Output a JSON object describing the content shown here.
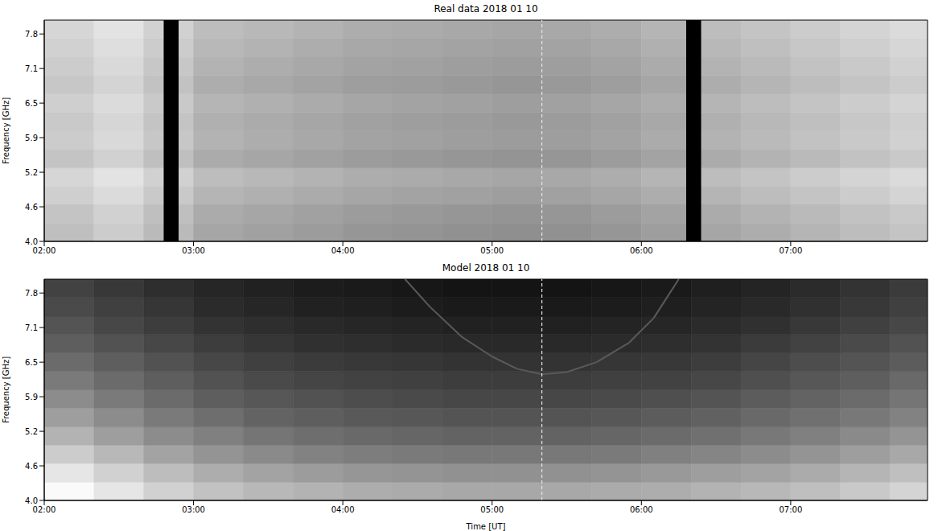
{
  "chart_data": [
    {
      "type": "heatmap",
      "title": "Real data 2018 01 10",
      "y_label": "Frequency [GHz]",
      "xlim": [
        120,
        475
      ],
      "xticks": [
        {
          "value": 120,
          "label": "02:00"
        },
        {
          "value": 180,
          "label": "03:00"
        },
        {
          "value": 240,
          "label": "04:00"
        },
        {
          "value": 300,
          "label": "05:00"
        },
        {
          "value": 360,
          "label": "06:00"
        },
        {
          "value": 420,
          "label": "07:00"
        }
      ],
      "ylim": [
        4.0,
        8.0
      ],
      "yticks": [
        {
          "value": 4.0,
          "label": "4.0"
        },
        {
          "value": 4.625,
          "label": "4.6"
        },
        {
          "value": 5.25,
          "label": "5.2"
        },
        {
          "value": 5.875,
          "label": "5.9"
        },
        {
          "value": 6.5,
          "label": "6.5"
        },
        {
          "value": 7.125,
          "label": "7.1"
        },
        {
          "value": 7.75,
          "label": "7.8"
        }
      ],
      "x_edges": [
        120,
        140,
        160,
        180,
        200,
        220,
        240,
        260,
        280,
        300,
        320,
        340,
        360,
        380,
        400,
        420,
        440,
        460,
        475
      ],
      "y_edges": [
        4.0,
        4.33,
        4.67,
        5.0,
        5.33,
        5.67,
        6.0,
        6.33,
        6.67,
        7.0,
        7.33,
        7.67,
        8.0
      ],
      "zlim": [
        0,
        1
      ],
      "cells": [
        [
          0.75,
          0.8,
          0.73,
          0.65,
          0.63,
          0.61,
          0.59,
          0.58,
          0.57,
          0.56,
          0.57,
          0.59,
          0.62,
          0.65,
          0.68,
          0.71,
          0.74,
          0.77
        ],
        [
          0.77,
          0.82,
          0.75,
          0.67,
          0.65,
          0.63,
          0.61,
          0.6,
          0.59,
          0.58,
          0.59,
          0.61,
          0.64,
          0.67,
          0.7,
          0.73,
          0.76,
          0.79
        ],
        [
          0.81,
          0.86,
          0.79,
          0.71,
          0.69,
          0.67,
          0.65,
          0.64,
          0.63,
          0.62,
          0.63,
          0.65,
          0.68,
          0.71,
          0.74,
          0.77,
          0.8,
          0.83
        ],
        [
          0.84,
          0.89,
          0.82,
          0.74,
          0.72,
          0.7,
          0.68,
          0.67,
          0.66,
          0.65,
          0.66,
          0.68,
          0.71,
          0.74,
          0.77,
          0.8,
          0.83,
          0.86
        ],
        [
          0.77,
          0.82,
          0.75,
          0.67,
          0.65,
          0.63,
          0.61,
          0.6,
          0.59,
          0.58,
          0.59,
          0.61,
          0.64,
          0.67,
          0.7,
          0.73,
          0.76,
          0.79
        ],
        [
          0.8,
          0.85,
          0.78,
          0.7,
          0.68,
          0.66,
          0.64,
          0.63,
          0.62,
          0.61,
          0.62,
          0.64,
          0.67,
          0.7,
          0.73,
          0.76,
          0.79,
          0.82
        ],
        [
          0.79,
          0.84,
          0.77,
          0.69,
          0.67,
          0.65,
          0.63,
          0.62,
          0.61,
          0.6,
          0.61,
          0.63,
          0.66,
          0.69,
          0.72,
          0.75,
          0.78,
          0.81
        ],
        [
          0.81,
          0.86,
          0.79,
          0.71,
          0.69,
          0.67,
          0.65,
          0.64,
          0.63,
          0.62,
          0.63,
          0.65,
          0.68,
          0.71,
          0.74,
          0.77,
          0.8,
          0.83
        ],
        [
          0.78,
          0.83,
          0.76,
          0.68,
          0.66,
          0.64,
          0.62,
          0.61,
          0.6,
          0.59,
          0.6,
          0.62,
          0.65,
          0.68,
          0.71,
          0.74,
          0.77,
          0.8
        ],
        [
          0.8,
          0.85,
          0.78,
          0.7,
          0.68,
          0.66,
          0.64,
          0.63,
          0.62,
          0.61,
          0.62,
          0.64,
          0.67,
          0.7,
          0.73,
          0.76,
          0.79,
          0.82
        ],
        [
          0.82,
          0.87,
          0.8,
          0.72,
          0.7,
          0.68,
          0.66,
          0.65,
          0.64,
          0.63,
          0.64,
          0.66,
          0.69,
          0.72,
          0.75,
          0.78,
          0.81,
          0.84
        ],
        [
          0.84,
          0.89,
          0.82,
          0.74,
          0.72,
          0.7,
          0.68,
          0.67,
          0.66,
          0.65,
          0.66,
          0.68,
          0.71,
          0.74,
          0.77,
          0.8,
          0.83,
          0.86
        ]
      ],
      "gaps": {
        "color": "#000000",
        "x": [
          [
            168,
            174
          ],
          [
            378,
            384
          ]
        ]
      },
      "vline": {
        "x": 320,
        "color": "#e6e6e6",
        "line_style": "dashed"
      }
    },
    {
      "type": "heatmap",
      "title": "Model 2018 01 10",
      "x_label": "Time [UT]",
      "y_label": "Frequency [GHz]",
      "xlim": [
        120,
        475
      ],
      "xticks": [
        {
          "value": 120,
          "label": "02:00"
        },
        {
          "value": 180,
          "label": "03:00"
        },
        {
          "value": 240,
          "label": "04:00"
        },
        {
          "value": 300,
          "label": "05:00"
        },
        {
          "value": 360,
          "label": "06:00"
        },
        {
          "value": 420,
          "label": "07:00"
        }
      ],
      "ylim": [
        4.0,
        8.0
      ],
      "yticks": [
        {
          "value": 4.0,
          "label": "4.0"
        },
        {
          "value": 4.625,
          "label": "4.6"
        },
        {
          "value": 5.25,
          "label": "5.2"
        },
        {
          "value": 5.875,
          "label": "5.9"
        },
        {
          "value": 6.5,
          "label": "6.5"
        },
        {
          "value": 7.125,
          "label": "7.1"
        },
        {
          "value": 7.75,
          "label": "7.8"
        }
      ],
      "x_edges": [
        120,
        140,
        160,
        180,
        200,
        220,
        240,
        260,
        280,
        300,
        320,
        340,
        360,
        380,
        400,
        420,
        440,
        460,
        475
      ],
      "y_edges": [
        4.0,
        4.33,
        4.67,
        5.0,
        5.33,
        5.67,
        6.0,
        6.33,
        6.67,
        7.0,
        7.33,
        7.67,
        8.0
      ],
      "zlim": [
        0,
        1
      ],
      "cells": [
        [
          0.98,
          0.9,
          0.82,
          0.76,
          0.72,
          0.7,
          0.68,
          0.67,
          0.66,
          0.66,
          0.66,
          0.67,
          0.68,
          0.7,
          0.72,
          0.75,
          0.79,
          0.83
        ],
        [
          0.9,
          0.82,
          0.74,
          0.68,
          0.64,
          0.61,
          0.59,
          0.58,
          0.57,
          0.57,
          0.57,
          0.58,
          0.6,
          0.62,
          0.64,
          0.67,
          0.71,
          0.75
        ],
        [
          0.8,
          0.72,
          0.64,
          0.58,
          0.54,
          0.51,
          0.49,
          0.48,
          0.47,
          0.47,
          0.47,
          0.48,
          0.5,
          0.52,
          0.55,
          0.58,
          0.62,
          0.66
        ],
        [
          0.7,
          0.62,
          0.55,
          0.5,
          0.46,
          0.43,
          0.41,
          0.4,
          0.39,
          0.39,
          0.39,
          0.4,
          0.42,
          0.44,
          0.47,
          0.5,
          0.54,
          0.58
        ],
        [
          0.62,
          0.55,
          0.48,
          0.43,
          0.39,
          0.37,
          0.35,
          0.34,
          0.33,
          0.33,
          0.33,
          0.34,
          0.36,
          0.38,
          0.41,
          0.44,
          0.47,
          0.51
        ],
        [
          0.55,
          0.48,
          0.42,
          0.37,
          0.34,
          0.32,
          0.3,
          0.29,
          0.28,
          0.28,
          0.28,
          0.29,
          0.31,
          0.33,
          0.36,
          0.39,
          0.42,
          0.46
        ],
        [
          0.48,
          0.42,
          0.37,
          0.32,
          0.29,
          0.27,
          0.26,
          0.25,
          0.24,
          0.24,
          0.24,
          0.25,
          0.26,
          0.28,
          0.31,
          0.34,
          0.37,
          0.41
        ],
        [
          0.42,
          0.37,
          0.32,
          0.28,
          0.25,
          0.23,
          0.22,
          0.21,
          0.2,
          0.2,
          0.2,
          0.21,
          0.22,
          0.24,
          0.27,
          0.3,
          0.33,
          0.36
        ],
        [
          0.37,
          0.32,
          0.28,
          0.24,
          0.21,
          0.19,
          0.18,
          0.17,
          0.16,
          0.16,
          0.16,
          0.17,
          0.18,
          0.2,
          0.23,
          0.26,
          0.29,
          0.32
        ],
        [
          0.33,
          0.28,
          0.24,
          0.2,
          0.18,
          0.16,
          0.15,
          0.14,
          0.13,
          0.13,
          0.13,
          0.14,
          0.15,
          0.17,
          0.19,
          0.22,
          0.25,
          0.28
        ],
        [
          0.29,
          0.25,
          0.21,
          0.17,
          0.15,
          0.13,
          0.12,
          0.11,
          0.1,
          0.1,
          0.1,
          0.11,
          0.12,
          0.14,
          0.16,
          0.19,
          0.22,
          0.25
        ],
        [
          0.26,
          0.22,
          0.18,
          0.15,
          0.13,
          0.11,
          0.1,
          0.09,
          0.08,
          0.08,
          0.08,
          0.09,
          0.1,
          0.12,
          0.14,
          0.17,
          0.2,
          0.23
        ]
      ],
      "curve": {
        "color": "#5a5a5a",
        "x": [
          265,
          275,
          288,
          300,
          310,
          320,
          330,
          342,
          355,
          365,
          375
        ],
        "y": [
          8.0,
          7.5,
          6.95,
          6.6,
          6.38,
          6.28,
          6.32,
          6.5,
          6.85,
          7.3,
          8.0
        ]
      },
      "vline": {
        "x": 320,
        "color": "#e6e6e6",
        "line_style": "dashed"
      }
    }
  ]
}
